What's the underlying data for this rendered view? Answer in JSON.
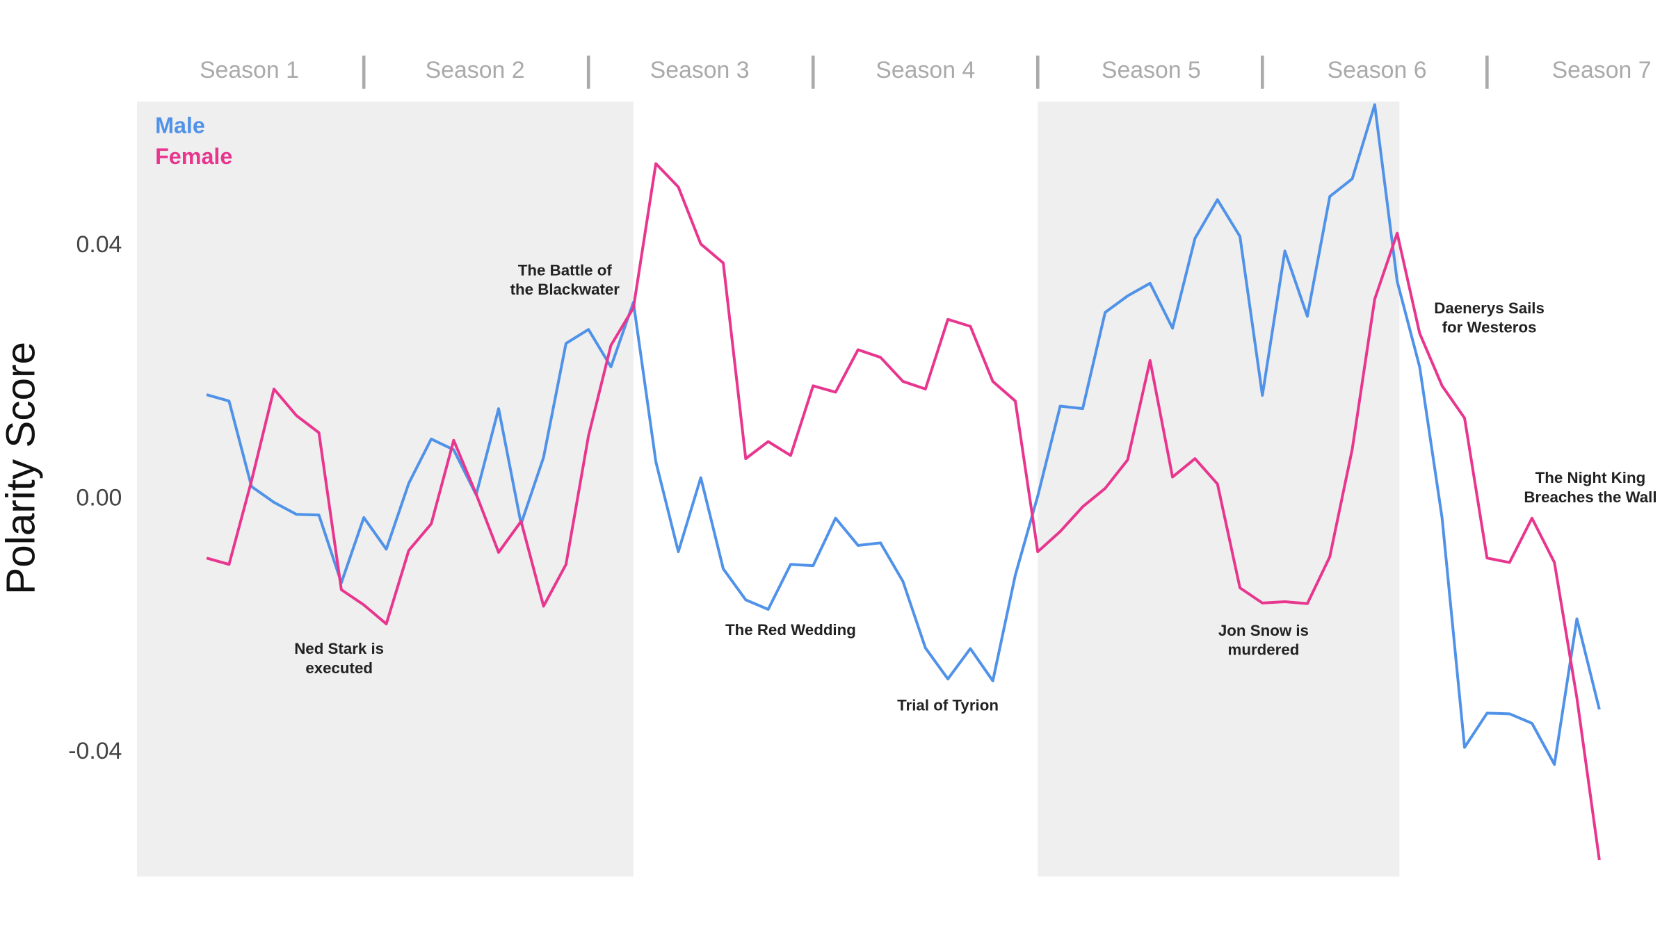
{
  "chart_data": {
    "type": "line",
    "y_label": "Polarity Score",
    "legend": "top-left",
    "x": [
      1,
      2,
      3,
      4,
      5,
      6,
      7,
      8,
      9,
      10,
      11,
      12,
      13,
      14,
      15,
      16,
      17,
      18,
      19,
      20,
      21,
      22,
      23,
      24,
      25,
      26,
      27,
      28,
      29,
      30,
      31,
      32,
      33,
      34,
      35,
      36,
      37,
      38,
      39,
      40,
      41,
      42,
      43,
      44,
      45,
      46,
      47,
      48,
      49,
      50,
      51,
      52,
      53,
      54,
      55,
      56,
      57,
      58,
      59,
      60,
      61,
      62,
      63
    ],
    "xlim": [
      -2.1,
      66.1
    ],
    "ylim": [
      -0.0596,
      0.0628
    ],
    "yticks": [
      0.04,
      {
        "value": 0,
        "label": "0.00"
      },
      -0.04
    ],
    "season_labels": [
      {
        "value": 2.9,
        "label": "Season 1"
      },
      {
        "value": 12.95,
        "label": "Season 2"
      },
      {
        "value": 22.95,
        "label": "Season 3"
      },
      {
        "value": 33,
        "label": "Season 4"
      },
      {
        "value": 43.05,
        "label": "Season 5"
      },
      {
        "value": 53.1,
        "label": "Season 6"
      },
      {
        "value": 63.1,
        "label": "Season 7"
      }
    ],
    "season_separators": [
      8,
      18,
      28,
      38,
      48,
      58
    ],
    "shaded_bands": [
      [
        -2.1,
        20
      ],
      [
        38,
        54.1
      ]
    ],
    "series": [
      {
        "name": "Male",
        "color": "#5092e8",
        "values": [
          0.0165,
          0.0155,
          0.002,
          -0.0005,
          -0.0024,
          -0.0025,
          -0.0132,
          -0.0029,
          -0.0079,
          0.0025,
          0.0095,
          0.0078,
          0.0007,
          0.0143,
          -0.0039,
          0.0066,
          0.0246,
          0.0268,
          0.0209,
          0.0311,
          0.0059,
          -0.0083,
          0.0034,
          -0.011,
          -0.0159,
          -0.0174,
          -0.0103,
          -0.0105,
          -0.003,
          -0.0073,
          -0.0069,
          -0.013,
          -0.0235,
          -0.0284,
          -0.0236,
          -0.0287,
          -0.012,
          0.0005,
          0.0147,
          0.0143,
          0.0295,
          0.0321,
          0.0341,
          0.027,
          0.0412,
          0.0473,
          0.0415,
          0.0164,
          0.0392,
          0.0289,
          0.0478,
          0.0506,
          0.0623,
          0.0344,
          0.0209,
          -0.003,
          -0.0392,
          -0.0338,
          -0.0339,
          -0.0354,
          -0.0419,
          -0.0189,
          -0.0332
        ]
      },
      {
        "name": "Female",
        "color": "#e8368f",
        "values": [
          -0.0093,
          -0.0103,
          0.0029,
          0.0174,
          0.0132,
          0.0105,
          -0.0143,
          -0.0167,
          -0.0197,
          -0.0081,
          -0.0039,
          0.0093,
          0.0008,
          -0.0084,
          -0.0035,
          -0.0169,
          -0.0103,
          0.01,
          0.0243,
          0.0302,
          0.053,
          0.0493,
          0.0403,
          0.0373,
          0.0064,
          0.0091,
          0.0069,
          0.0179,
          0.0169,
          0.0236,
          0.0224,
          0.0186,
          0.0174,
          0.0284,
          0.0273,
          0.0186,
          0.0155,
          -0.0083,
          -0.0051,
          -0.0012,
          0.0017,
          0.0062,
          0.0219,
          0.0035,
          0.0064,
          0.0024,
          -0.014,
          -0.0164,
          -0.0162,
          -0.0165,
          -0.0091,
          0.0079,
          0.0316,
          0.042,
          0.0262,
          0.0179,
          0.0128,
          -0.0093,
          -0.01,
          -0.003,
          -0.01,
          -0.0314,
          -0.057
        ]
      }
    ],
    "annotations": [
      {
        "lines": [
          "The Battle of",
          "the Blackwater"
        ],
        "x": 16.95,
        "y": 0.036
      },
      {
        "lines": [
          "Ned Stark is",
          "executed"
        ],
        "x": 6.9,
        "y": -0.0238
      },
      {
        "lines": [
          "The Red Wedding"
        ],
        "x": 27,
        "y": -0.0208
      },
      {
        "lines": [
          "Trial of Tyrion"
        ],
        "x": 34,
        "y": -0.0327
      },
      {
        "lines": [
          "Jon Snow is",
          "murdered"
        ],
        "x": 48.05,
        "y": -0.0209
      },
      {
        "lines": [
          "Daenerys Sails",
          "for Westeros"
        ],
        "x": 58.1,
        "y": 0.03
      },
      {
        "lines": [
          "The Night King",
          "Breaches the Wall"
        ],
        "x": 62.6,
        "y": 0.0032
      }
    ]
  }
}
